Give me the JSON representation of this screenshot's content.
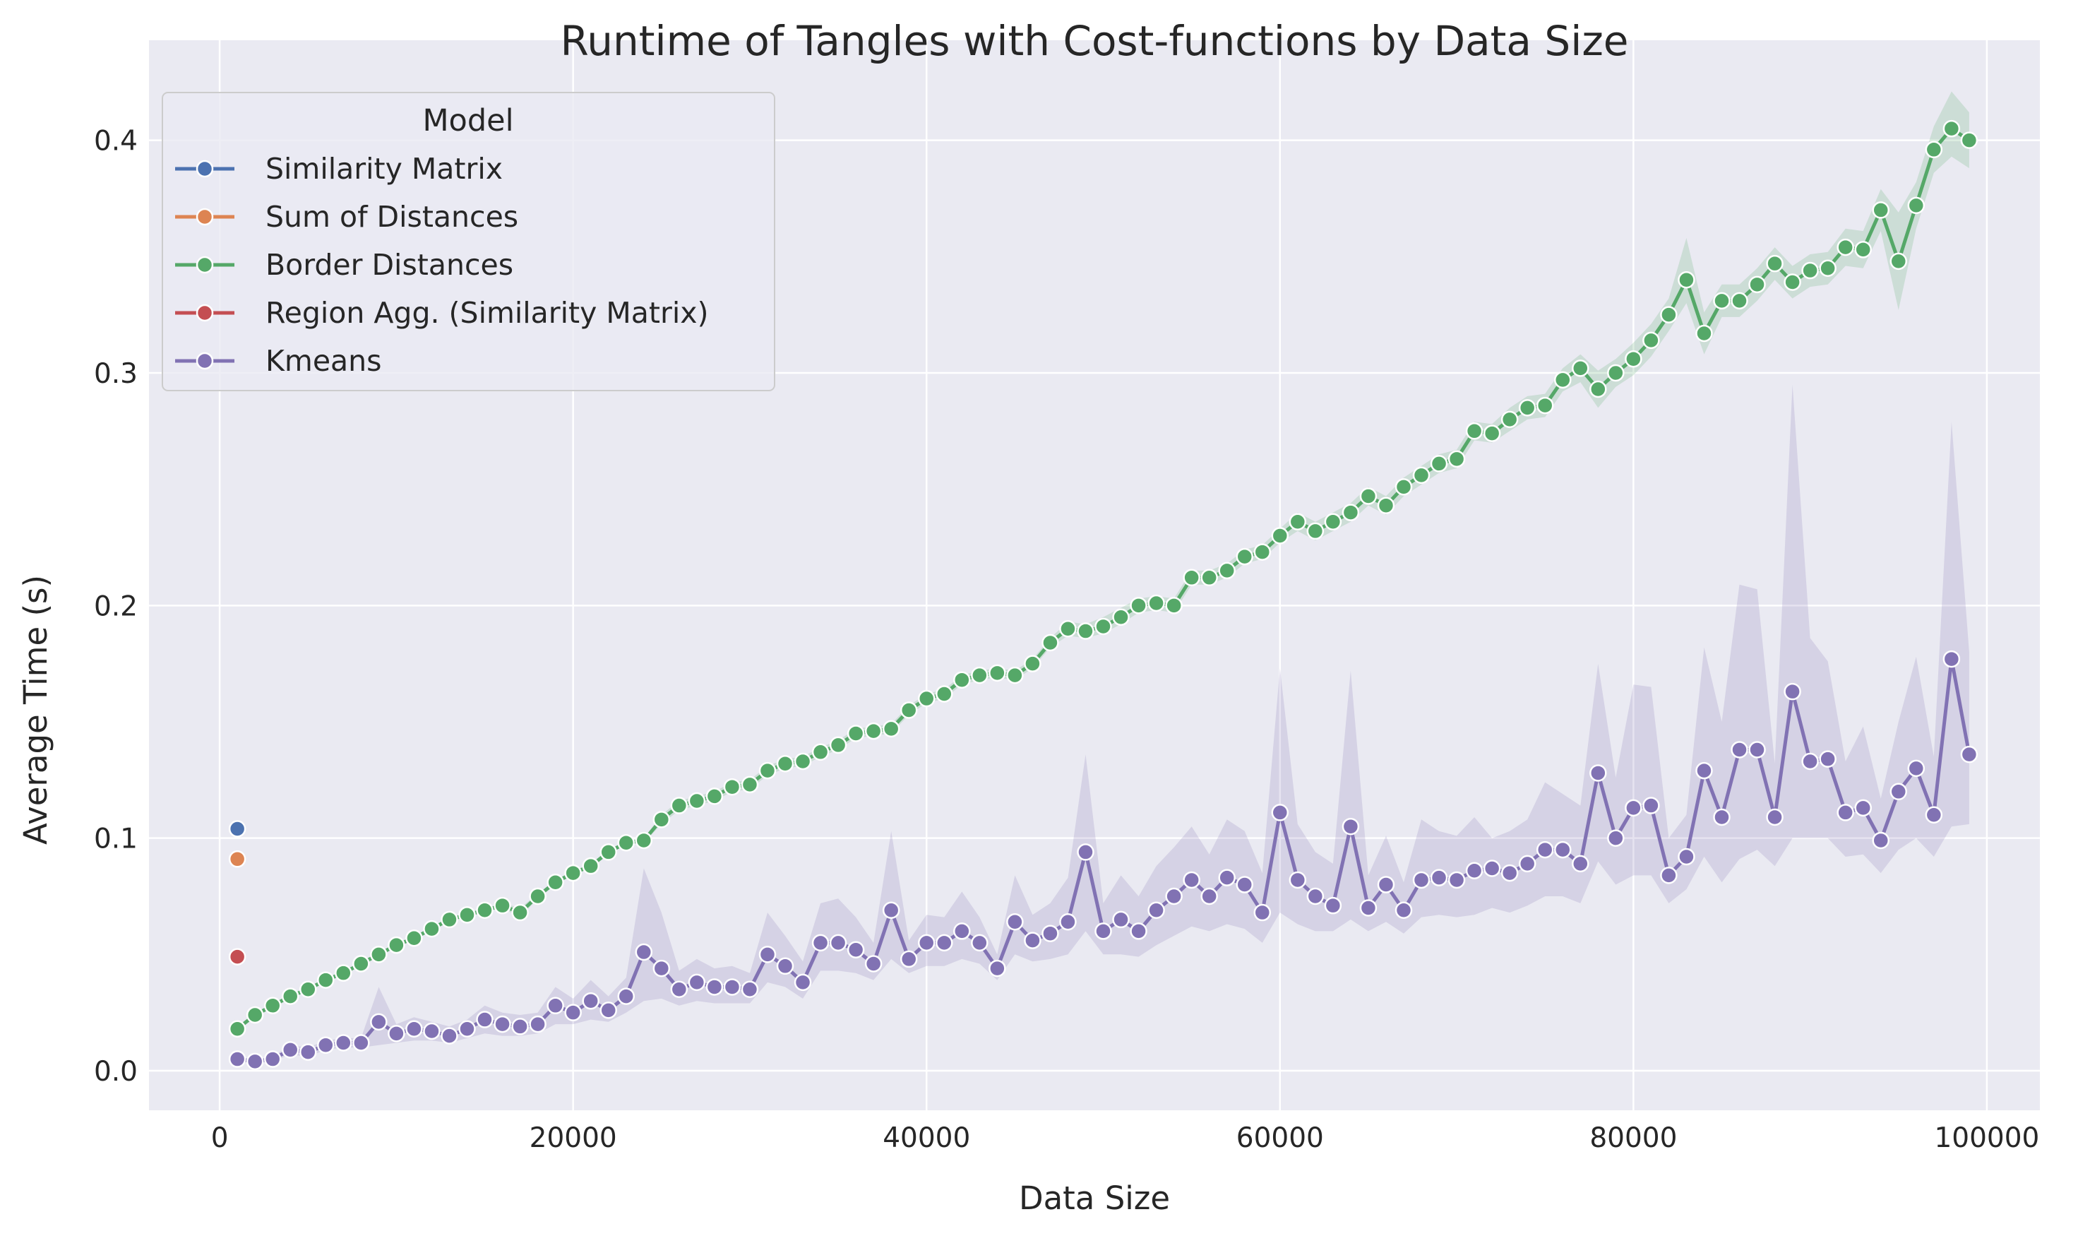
{
  "chart_data": {
    "type": "line",
    "title": "Runtime of Tangles with Cost-functions by Data Size",
    "xlabel": "Data Size",
    "ylabel": "Average Time (s)",
    "xlim": [
      -4000,
      103000
    ],
    "ylim": [
      -0.017,
      0.443
    ],
    "xticks": [
      0,
      20000,
      40000,
      60000,
      80000,
      100000
    ],
    "xtick_labels": [
      "0",
      "20000",
      "40000",
      "60000",
      "80000",
      "100000"
    ],
    "yticks": [
      0.0,
      0.1,
      0.2,
      0.3,
      0.4
    ],
    "ytick_labels": [
      "0.0",
      "0.1",
      "0.2",
      "0.3",
      "0.4"
    ],
    "grid": true,
    "legend": {
      "title": "Model",
      "placement": "top-left"
    },
    "colors": {
      "background": "#eaeaf2",
      "grid": "#ffffff",
      "similarity_matrix": "#4c72b0",
      "sum_of_distances": "#dd8452",
      "border_distances": "#55a868",
      "region_agg": "#c44e52",
      "kmeans": "#8172b3"
    },
    "series": [
      {
        "name": "Similarity Matrix",
        "color": "#4c72b0",
        "x": [
          1000
        ],
        "y": [
          0.104
        ]
      },
      {
        "name": "Sum of Distances",
        "color": "#dd8452",
        "x": [
          1000
        ],
        "y": [
          0.091
        ]
      },
      {
        "name": "Border Distances",
        "color": "#55a868",
        "x": [
          1000,
          2000,
          3000,
          4000,
          5000,
          6000,
          7000,
          8000,
          9000,
          10000,
          11000,
          12000,
          13000,
          14000,
          15000,
          16000,
          17000,
          18000,
          19000,
          20000,
          21000,
          22000,
          23000,
          24000,
          25000,
          26000,
          27000,
          28000,
          29000,
          30000,
          31000,
          32000,
          33000,
          34000,
          35000,
          36000,
          37000,
          38000,
          39000,
          40000,
          41000,
          42000,
          43000,
          44000,
          45000,
          46000,
          47000,
          48000,
          49000,
          50000,
          51000,
          52000,
          53000,
          54000,
          55000,
          56000,
          57000,
          58000,
          59000,
          60000,
          61000,
          62000,
          63000,
          64000,
          65000,
          66000,
          67000,
          68000,
          69000,
          70000,
          71000,
          72000,
          73000,
          74000,
          75000,
          76000,
          77000,
          78000,
          79000,
          80000,
          81000,
          82000,
          83000,
          84000,
          85000,
          86000,
          87000,
          88000,
          89000,
          90000,
          91000,
          92000,
          93000,
          94000,
          95000,
          96000,
          97000,
          98000,
          99000
        ],
        "y": [
          0.018,
          0.024,
          0.028,
          0.032,
          0.035,
          0.039,
          0.042,
          0.046,
          0.05,
          0.054,
          0.057,
          0.061,
          0.065,
          0.067,
          0.069,
          0.071,
          0.068,
          0.075,
          0.081,
          0.085,
          0.088,
          0.094,
          0.098,
          0.099,
          0.108,
          0.114,
          0.116,
          0.118,
          0.122,
          0.123,
          0.129,
          0.132,
          0.133,
          0.137,
          0.14,
          0.145,
          0.146,
          0.147,
          0.155,
          0.16,
          0.162,
          0.168,
          0.17,
          0.171,
          0.17,
          0.175,
          0.184,
          0.19,
          0.189,
          0.191,
          0.195,
          0.2,
          0.201,
          0.2,
          0.212,
          0.212,
          0.215,
          0.221,
          0.223,
          0.23,
          0.236,
          0.232,
          0.236,
          0.24,
          0.247,
          0.243,
          0.251,
          0.256,
          0.261,
          0.263,
          0.275,
          0.274,
          0.28,
          0.285,
          0.286,
          0.297,
          0.302,
          0.293,
          0.3,
          0.306,
          0.314,
          0.325,
          0.34,
          0.317,
          0.331,
          0.331,
          0.338,
          0.347,
          0.339,
          0.344,
          0.345,
          0.354,
          0.353,
          0.37,
          0.348,
          0.372,
          0.396,
          0.405,
          0.4
        ],
        "y_lower": [
          0.017,
          0.023,
          0.027,
          0.031,
          0.034,
          0.038,
          0.041,
          0.045,
          0.049,
          0.053,
          0.056,
          0.06,
          0.064,
          0.066,
          0.068,
          0.07,
          0.066,
          0.074,
          0.08,
          0.084,
          0.087,
          0.093,
          0.097,
          0.098,
          0.106,
          0.112,
          0.114,
          0.116,
          0.12,
          0.121,
          0.127,
          0.13,
          0.131,
          0.135,
          0.138,
          0.143,
          0.144,
          0.145,
          0.153,
          0.158,
          0.16,
          0.166,
          0.168,
          0.169,
          0.168,
          0.173,
          0.182,
          0.187,
          0.186,
          0.188,
          0.192,
          0.197,
          0.198,
          0.197,
          0.209,
          0.209,
          0.212,
          0.218,
          0.22,
          0.227,
          0.232,
          0.228,
          0.232,
          0.236,
          0.243,
          0.239,
          0.247,
          0.252,
          0.257,
          0.259,
          0.271,
          0.27,
          0.275,
          0.28,
          0.281,
          0.292,
          0.296,
          0.285,
          0.294,
          0.299,
          0.307,
          0.318,
          0.33,
          0.308,
          0.324,
          0.324,
          0.331,
          0.34,
          0.332,
          0.337,
          0.338,
          0.346,
          0.345,
          0.361,
          0.327,
          0.362,
          0.386,
          0.393,
          0.388
        ],
        "y_upper": [
          0.019,
          0.025,
          0.029,
          0.033,
          0.036,
          0.04,
          0.043,
          0.047,
          0.051,
          0.055,
          0.058,
          0.062,
          0.066,
          0.068,
          0.07,
          0.072,
          0.07,
          0.076,
          0.082,
          0.086,
          0.089,
          0.095,
          0.099,
          0.1,
          0.11,
          0.116,
          0.118,
          0.12,
          0.124,
          0.125,
          0.131,
          0.134,
          0.135,
          0.139,
          0.142,
          0.147,
          0.148,
          0.149,
          0.157,
          0.162,
          0.164,
          0.17,
          0.172,
          0.173,
          0.172,
          0.177,
          0.186,
          0.193,
          0.192,
          0.195,
          0.199,
          0.203,
          0.204,
          0.203,
          0.215,
          0.215,
          0.218,
          0.224,
          0.226,
          0.233,
          0.24,
          0.236,
          0.24,
          0.244,
          0.251,
          0.247,
          0.255,
          0.26,
          0.265,
          0.267,
          0.279,
          0.278,
          0.285,
          0.29,
          0.291,
          0.302,
          0.308,
          0.301,
          0.306,
          0.313,
          0.321,
          0.332,
          0.358,
          0.326,
          0.338,
          0.338,
          0.345,
          0.354,
          0.346,
          0.351,
          0.352,
          0.362,
          0.361,
          0.379,
          0.369,
          0.382,
          0.406,
          0.421,
          0.412
        ]
      },
      {
        "name": "Region Agg. (Similarity Matrix)",
        "color": "#c44e52",
        "x": [
          1000
        ],
        "y": [
          0.049
        ]
      },
      {
        "name": "Kmeans",
        "color": "#8172b3",
        "x": [
          1000,
          2000,
          3000,
          4000,
          5000,
          6000,
          7000,
          8000,
          9000,
          10000,
          11000,
          12000,
          13000,
          14000,
          15000,
          16000,
          17000,
          18000,
          19000,
          20000,
          21000,
          22000,
          23000,
          24000,
          25000,
          26000,
          27000,
          28000,
          29000,
          30000,
          31000,
          32000,
          33000,
          34000,
          35000,
          36000,
          37000,
          38000,
          39000,
          40000,
          41000,
          42000,
          43000,
          44000,
          45000,
          46000,
          47000,
          48000,
          49000,
          50000,
          51000,
          52000,
          53000,
          54000,
          55000,
          56000,
          57000,
          58000,
          59000,
          60000,
          61000,
          62000,
          63000,
          64000,
          65000,
          66000,
          67000,
          68000,
          69000,
          70000,
          71000,
          72000,
          73000,
          74000,
          75000,
          76000,
          77000,
          78000,
          79000,
          80000,
          81000,
          82000,
          83000,
          84000,
          85000,
          86000,
          87000,
          88000,
          89000,
          90000,
          91000,
          92000,
          93000,
          94000,
          95000,
          96000,
          97000,
          98000,
          99000
        ],
        "y": [
          0.005,
          0.004,
          0.005,
          0.009,
          0.008,
          0.011,
          0.012,
          0.012,
          0.021,
          0.016,
          0.018,
          0.017,
          0.015,
          0.018,
          0.022,
          0.02,
          0.019,
          0.02,
          0.028,
          0.025,
          0.03,
          0.026,
          0.032,
          0.051,
          0.044,
          0.035,
          0.038,
          0.036,
          0.036,
          0.035,
          0.05,
          0.045,
          0.038,
          0.055,
          0.055,
          0.052,
          0.046,
          0.069,
          0.048,
          0.055,
          0.055,
          0.06,
          0.055,
          0.044,
          0.064,
          0.056,
          0.059,
          0.064,
          0.094,
          0.06,
          0.065,
          0.06,
          0.069,
          0.075,
          0.082,
          0.075,
          0.083,
          0.08,
          0.068,
          0.111,
          0.082,
          0.075,
          0.071,
          0.105,
          0.07,
          0.08,
          0.069,
          0.082,
          0.083,
          0.082,
          0.086,
          0.087,
          0.085,
          0.089,
          0.095,
          0.095,
          0.089,
          0.128,
          0.1,
          0.113,
          0.114,
          0.084,
          0.092,
          0.129,
          0.109,
          0.138,
          0.138,
          0.109,
          0.163,
          0.133,
          0.134,
          0.111,
          0.113,
          0.099,
          0.12,
          0.13,
          0.11,
          0.177,
          0.136
        ],
        "y_lower": [
          0.004,
          0.003,
          0.004,
          0.007,
          0.006,
          0.009,
          0.01,
          0.01,
          0.011,
          0.012,
          0.013,
          0.013,
          0.012,
          0.014,
          0.016,
          0.015,
          0.015,
          0.016,
          0.02,
          0.02,
          0.022,
          0.021,
          0.025,
          0.03,
          0.031,
          0.028,
          0.03,
          0.029,
          0.029,
          0.029,
          0.038,
          0.036,
          0.031,
          0.043,
          0.043,
          0.042,
          0.039,
          0.048,
          0.042,
          0.045,
          0.045,
          0.048,
          0.046,
          0.039,
          0.05,
          0.047,
          0.048,
          0.05,
          0.06,
          0.05,
          0.05,
          0.049,
          0.054,
          0.058,
          0.062,
          0.06,
          0.063,
          0.061,
          0.055,
          0.068,
          0.063,
          0.06,
          0.06,
          0.065,
          0.06,
          0.064,
          0.059,
          0.066,
          0.067,
          0.066,
          0.067,
          0.07,
          0.068,
          0.071,
          0.075,
          0.075,
          0.072,
          0.09,
          0.08,
          0.084,
          0.084,
          0.072,
          0.078,
          0.092,
          0.081,
          0.091,
          0.095,
          0.088,
          0.1,
          0.1,
          0.1,
          0.092,
          0.093,
          0.085,
          0.095,
          0.1,
          0.092,
          0.105,
          0.106
        ],
        "y_upper": [
          0.006,
          0.005,
          0.006,
          0.011,
          0.01,
          0.013,
          0.014,
          0.014,
          0.036,
          0.02,
          0.023,
          0.021,
          0.019,
          0.022,
          0.028,
          0.025,
          0.024,
          0.025,
          0.036,
          0.031,
          0.039,
          0.032,
          0.04,
          0.087,
          0.068,
          0.043,
          0.048,
          0.044,
          0.045,
          0.042,
          0.068,
          0.058,
          0.047,
          0.072,
          0.074,
          0.066,
          0.055,
          0.103,
          0.056,
          0.067,
          0.066,
          0.077,
          0.066,
          0.05,
          0.084,
          0.067,
          0.072,
          0.083,
          0.136,
          0.072,
          0.084,
          0.075,
          0.088,
          0.096,
          0.105,
          0.093,
          0.108,
          0.103,
          0.085,
          0.173,
          0.106,
          0.094,
          0.089,
          0.172,
          0.084,
          0.101,
          0.081,
          0.108,
          0.103,
          0.101,
          0.109,
          0.1,
          0.103,
          0.108,
          0.124,
          0.119,
          0.114,
          0.175,
          0.126,
          0.166,
          0.165,
          0.1,
          0.11,
          0.182,
          0.15,
          0.209,
          0.207,
          0.132,
          0.295,
          0.186,
          0.176,
          0.133,
          0.148,
          0.117,
          0.15,
          0.178,
          0.135,
          0.279,
          0.18
        ]
      }
    ]
  }
}
